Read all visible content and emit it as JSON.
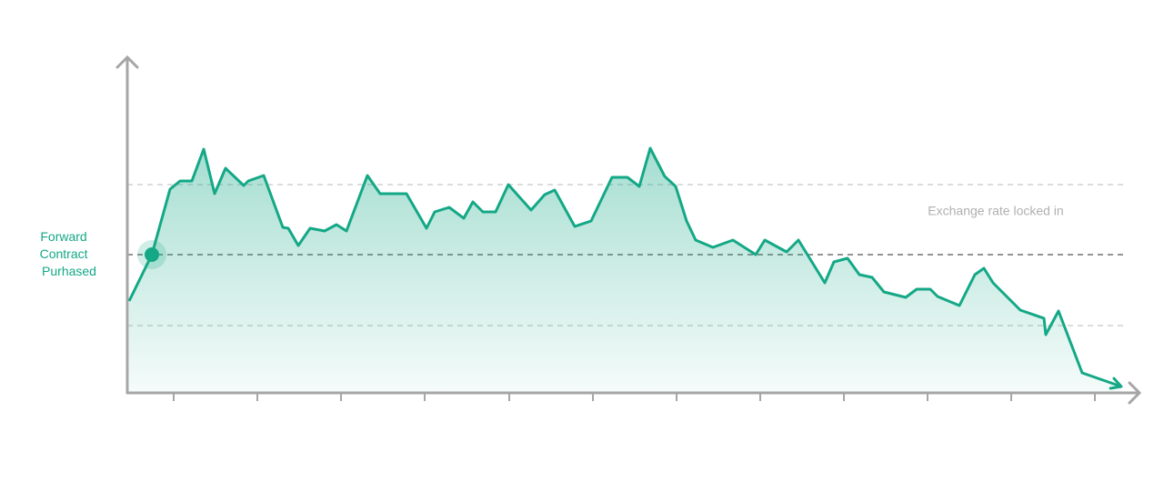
{
  "chart_data": {
    "type": "line",
    "annotation_lines": [
      "Forward",
      "Contract",
      "Purhased"
    ],
    "reference_label": "Exchange rate locked in",
    "reference_lines": [
      229,
      152,
      74
    ],
    "locked_index": 1,
    "xlim": [
      0,
      1112
    ],
    "ylim": [
      0,
      370
    ],
    "xticks": [
      51,
      143,
      235,
      327,
      420,
      512,
      604,
      696,
      788,
      880,
      972,
      1064
    ],
    "series": [
      {
        "color": "#14a886",
        "x": [
          2,
          27,
          47,
          58,
          71,
          84,
          96,
          108,
          128,
          133,
          150,
          171,
          177,
          188,
          201,
          217,
          230,
          241,
          264,
          278,
          307,
          329,
          338,
          354,
          370,
          380,
          391,
          405,
          419,
          444,
          459,
          470,
          492,
          510,
          533,
          550,
          563,
          575,
          591,
          603,
          615,
          625,
          644,
          666,
          691,
          701,
          725,
          738,
          767,
          777,
          792,
          805,
          819,
          832,
          856,
          868,
          883,
          891,
          915,
          932,
          942,
          952,
          982,
          1008,
          1010,
          1024,
          1050,
          1093
        ],
        "values": [
          101,
          152,
          224,
          233,
          233,
          268,
          219,
          247,
          228,
          233,
          239,
          182,
          181,
          162,
          181,
          178,
          185,
          178,
          239,
          219,
          219,
          181,
          199,
          204,
          192,
          210,
          199,
          199,
          229,
          201,
          218,
          223,
          183,
          189,
          237,
          237,
          227,
          269,
          238,
          227,
          189,
          168,
          160,
          168,
          152,
          168,
          155,
          168,
          121,
          144,
          148,
          130,
          127,
          111,
          105,
          114,
          114,
          106,
          96,
          130,
          137,
          121,
          91,
          82,
          64,
          90,
          22,
          7
        ]
      }
    ]
  }
}
